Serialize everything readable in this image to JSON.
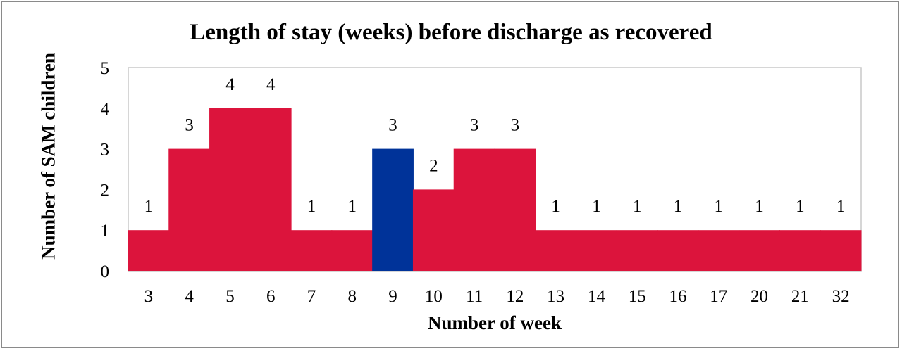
{
  "chart_data": {
    "type": "bar",
    "title": "Length of stay (weeks) before discharge as recovered",
    "xlabel": "Number of week",
    "ylabel": "Number of SAM children",
    "categories": [
      "3",
      "4",
      "5",
      "6",
      "7",
      "8",
      "9",
      "10",
      "11",
      "12",
      "13",
      "14",
      "15",
      "16",
      "17",
      "20",
      "21",
      "32"
    ],
    "values": [
      1,
      3,
      4,
      4,
      1,
      1,
      3,
      2,
      3,
      3,
      1,
      1,
      1,
      1,
      1,
      1,
      1,
      1
    ],
    "data_labels": [
      "1",
      "3",
      "4",
      "4",
      "1",
      "1",
      "3",
      "2",
      "3",
      "3",
      "1",
      "1",
      "1",
      "1",
      "1",
      "1",
      "1",
      "1"
    ],
    "highlight_index": 6,
    "colors": {
      "bar": "#dc143c",
      "highlight": "#003399",
      "plot_border": "#c8c8c8"
    },
    "ylim": [
      0,
      5
    ],
    "yticks": [
      "0",
      "1",
      "2",
      "3",
      "4",
      "5"
    ],
    "grid": false,
    "legend": "none"
  }
}
